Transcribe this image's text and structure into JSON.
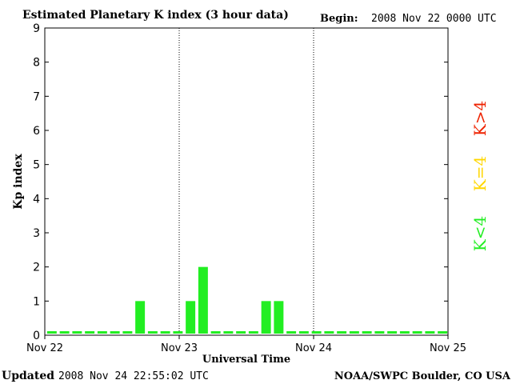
{
  "chart_data": {
    "type": "bar",
    "title": "Estimated Planetary K index (3 hour data)",
    "begin_label": "Begin:",
    "begin_value": "2008 Nov 22 0000 UTC",
    "xlabel": "Universal Time",
    "ylabel": "Kp index",
    "ylim": [
      0,
      9
    ],
    "y_ticks": [
      "0",
      "1",
      "2",
      "3",
      "4",
      "5",
      "6",
      "7",
      "8",
      "9"
    ],
    "x_ticks": [
      "Nov 22",
      "Nov 23",
      "Nov 24",
      "Nov 25"
    ],
    "grid": false,
    "day_separators": true,
    "values": [
      0,
      0,
      0,
      0,
      0,
      0,
      0,
      1,
      0,
      0,
      0,
      1,
      2,
      0,
      0,
      0,
      0,
      1,
      1,
      0,
      0,
      0,
      0,
      0,
      0,
      0,
      0,
      0,
      0,
      0,
      0,
      0
    ],
    "colors": {
      "low": "#22ee22",
      "mid": "#ffd700",
      "high": "#ee2200",
      "axis": "#000000"
    },
    "legend": {
      "placement": "right",
      "items": [
        {
          "label": "K>4",
          "color": "#ee2200"
        },
        {
          "label": "K=4",
          "color": "#ffd700"
        },
        {
          "label": "K<4",
          "color": "#22ee22"
        }
      ]
    }
  },
  "footer": {
    "updated_label": "Updated",
    "updated_value": "2008 Nov 24 22:55:02 UTC",
    "source": "NOAA/SWPC Boulder, CO USA"
  }
}
